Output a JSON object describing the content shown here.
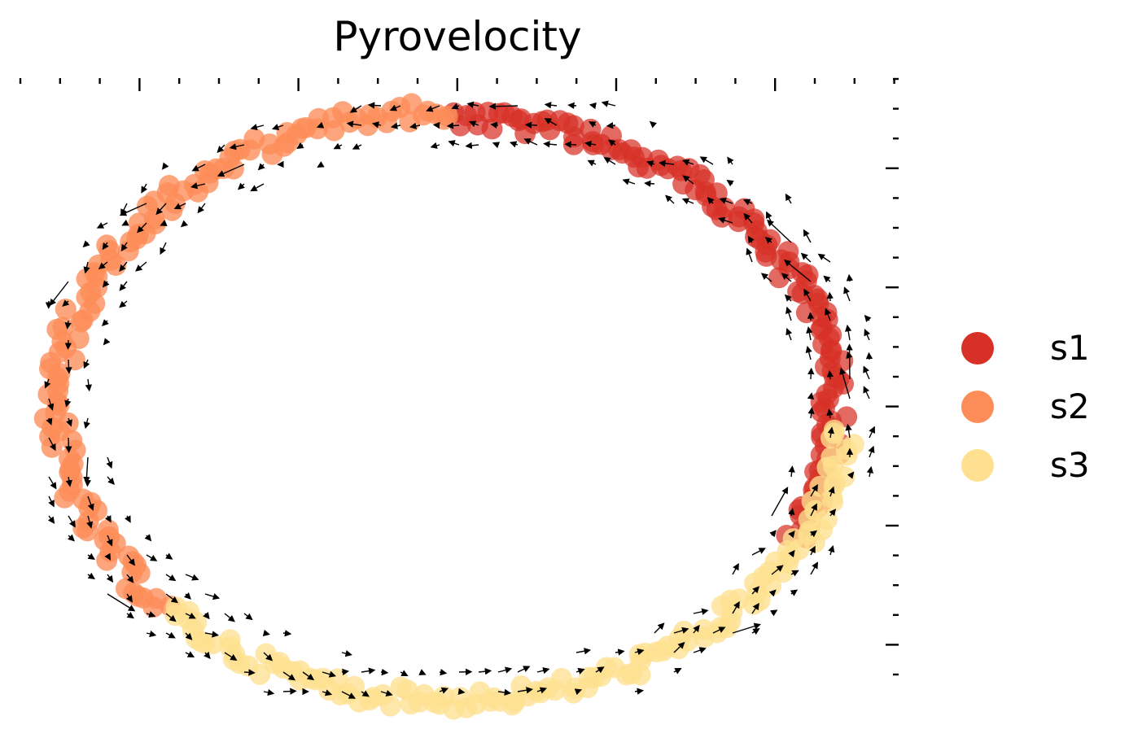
{
  "chart_data": {
    "type": "scatter",
    "title": "Pyrovelocity",
    "subtype": "velocity-embedding-stream",
    "xlabel": "",
    "ylabel": "",
    "xlim": [
      -1.1,
      1.1
    ],
    "ylim": [
      -1.05,
      1.05
    ],
    "x_tick_labels": [],
    "y_tick_labels": [],
    "grid": false,
    "legend_position": "right",
    "arrow_color": "#000000",
    "shape": "ellipse",
    "series": [
      {
        "name": "s1",
        "color": "#d73027",
        "theta_range_deg": [
          -28,
          90
        ],
        "radius": 0.97
      },
      {
        "name": "s2",
        "color": "#fc8d59",
        "theta_range_deg": [
          90,
          224
        ],
        "radius": 1.0
      },
      {
        "name": "s3",
        "color": "#fee090",
        "theta_range_deg": [
          224,
          356
        ],
        "radius": 1.0
      }
    ]
  }
}
